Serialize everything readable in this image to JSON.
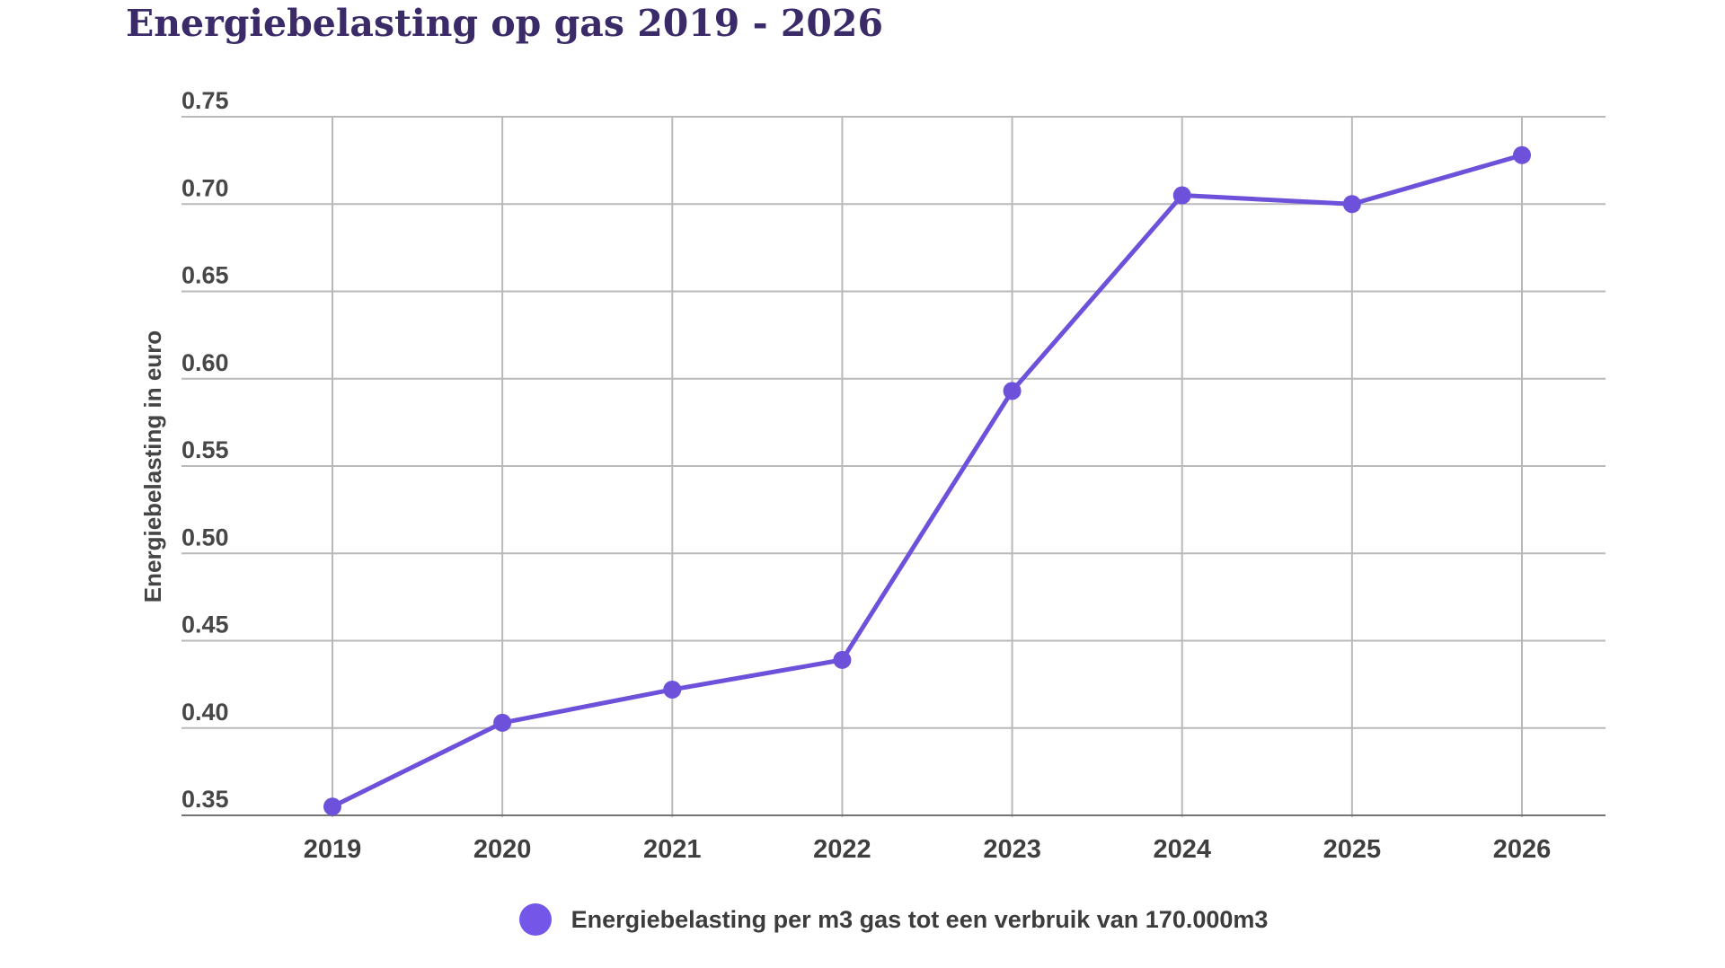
{
  "title": {
    "text": "Energiebelasting op gas 2019 - 2026",
    "color": "#3b2a68"
  },
  "chart_data": {
    "type": "line",
    "title": "Energiebelasting op gas 2019 - 2026",
    "categories": [
      "2019",
      "2020",
      "2021",
      "2022",
      "2023",
      "2024",
      "2025",
      "2026"
    ],
    "series": [
      {
        "name": "Energiebelasting per m3 gas tot een verbruik van 170.000m3",
        "values": [
          0.355,
          0.403,
          0.422,
          0.439,
          0.593,
          0.705,
          0.7,
          0.728
        ]
      }
    ],
    "xlabel": "",
    "ylabel": "Energiebelasting in euro",
    "ylim": [
      0.35,
      0.75
    ],
    "y_ticks": [
      0.35,
      0.4,
      0.45,
      0.5,
      0.55,
      0.6,
      0.65,
      0.7,
      0.75
    ],
    "y_tick_decimals": 2,
    "grid": "both",
    "legend_position": "bottom",
    "point_style": "filled-circle"
  },
  "colors": {
    "line": "#6e51da",
    "point": "#6e51da",
    "legend_dot": "#7456e8",
    "gridline": "#b9b9b9",
    "axis_line": "#757575",
    "tick_label": "#474747",
    "x_tick_label": "#3f3f3f"
  }
}
